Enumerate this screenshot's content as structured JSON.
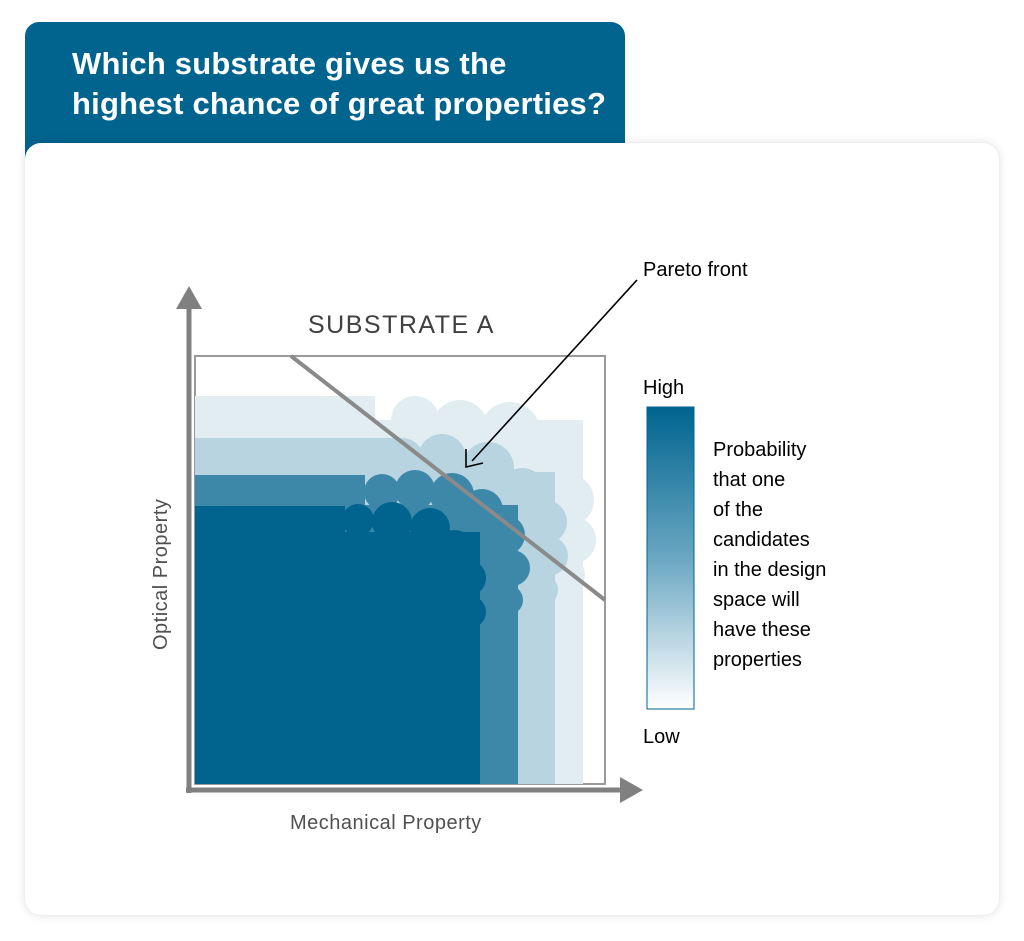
{
  "header": {
    "title": "Which substrate gives us the highest chance of great properties?"
  },
  "diagram": {
    "panel_title": "SUBSTRATE A",
    "x_axis_label": "Mechanical Property",
    "y_axis_label": "Optical Property",
    "annotation": "Pareto front",
    "legend": {
      "high": "High",
      "low": "Low",
      "description_lines": [
        "Probability",
        "that one",
        "of the",
        "candidates",
        "in the design",
        "space will",
        "have these",
        "properties"
      ]
    },
    "colors": {
      "brand": "#00648f",
      "level_1": "#00648f",
      "level_2": "#3d88a8",
      "level_3": "#b8d4e0",
      "level_4": "#e2edf2",
      "axis": "#808080"
    }
  }
}
